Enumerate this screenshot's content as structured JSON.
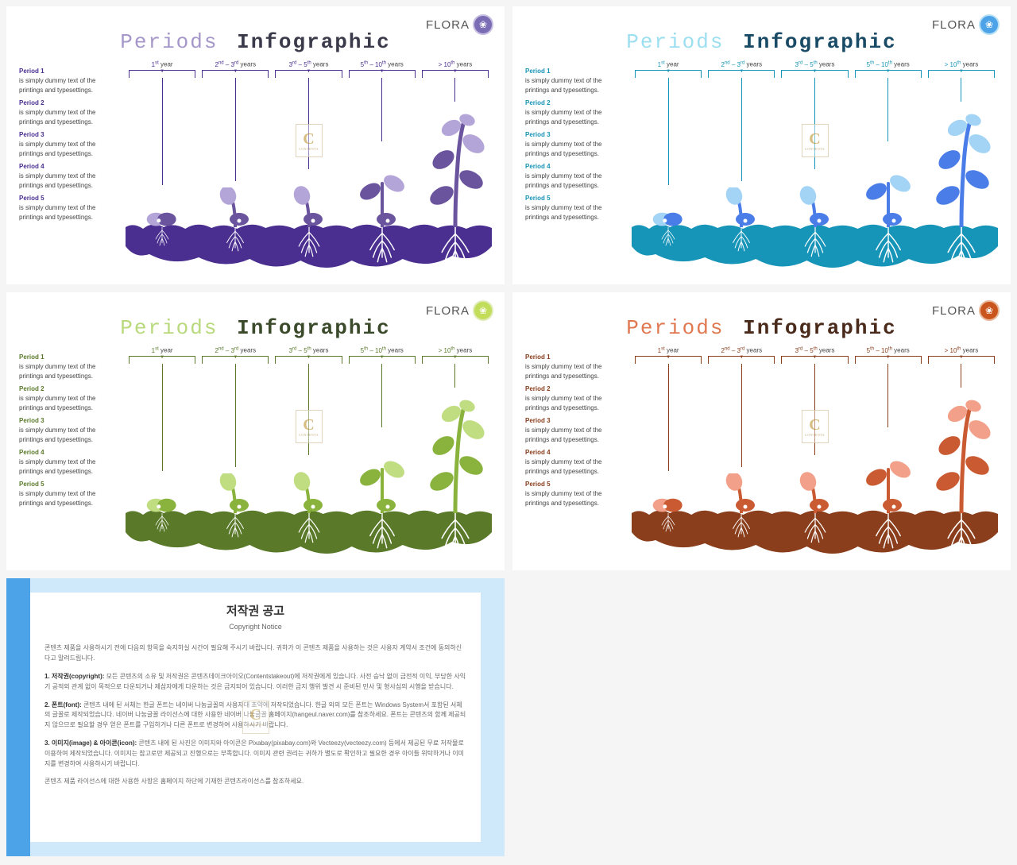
{
  "title_word1": "Periods",
  "title_word2": "Infographic",
  "logo_text": "FLORA",
  "stage_unit": "year",
  "stage_unit_plural": "years",
  "stages": [
    {
      "label_html": "1<sup>st</sup> year"
    },
    {
      "label_html": "2<sup>nd</sup> – 3<sup>rd</sup> years"
    },
    {
      "label_html": "3<sup>rd</sup> – 5<sup>th</sup> years"
    },
    {
      "label_html": "5<sup>th</sup> – 10<sup>th</sup> years"
    },
    {
      "label_html": "> 10<sup>th</sup> years"
    }
  ],
  "side_periods": [
    {
      "h": "Period 1",
      "t": "is simply dummy text of the printings and typesettings."
    },
    {
      "h": "Period 2",
      "t": "is simply dummy text of the printings and typesettings."
    },
    {
      "h": "Period 3",
      "t": "is simply dummy text of the printings and typesettings."
    },
    {
      "h": "Period 4",
      "t": "is simply dummy text of the printings and typesettings."
    },
    {
      "h": "Period 5",
      "t": "is simply dummy text of the printings and typesettings."
    }
  ],
  "variants": [
    {
      "name": "purple",
      "title1_color": "#a597c9",
      "title2_color": "#3a3a4a",
      "accent": "#4a2f91",
      "plant_light": "#b3a5d8",
      "plant_dark": "#6b549e",
      "ground": "#4a2f91",
      "logo_circle_bg": "#7a6cb5",
      "logo_circle_border": "#c7bfe2"
    },
    {
      "name": "blue",
      "title1_color": "#9bdff0",
      "title2_color": "#1a4b66",
      "accent": "#1795b8",
      "plant_light": "#a3d4f5",
      "plant_dark": "#4a7de8",
      "ground": "#1795b8",
      "logo_circle_bg": "#4da3e8",
      "logo_circle_border": "#b8e0f5"
    },
    {
      "name": "green",
      "title1_color": "#b8d97c",
      "title2_color": "#3a4a2a",
      "accent": "#5a7a2a",
      "plant_light": "#c1dd82",
      "plant_dark": "#8ab33e",
      "ground": "#5a7a2a",
      "logo_circle_bg": "#c1dd5a",
      "logo_circle_border": "#e0ecb8"
    },
    {
      "name": "orange",
      "title1_color": "#e07850",
      "title2_color": "#4a2a1a",
      "accent": "#8a3e1c",
      "plant_light": "#f2a089",
      "plant_dark": "#c95a32",
      "ground": "#8a3e1c",
      "logo_circle_bg": "#c9551c",
      "logo_circle_border": "#e8b89a"
    }
  ],
  "watermark_letter": "C",
  "watermark_small": "CONTENTS",
  "copyright": {
    "title": "저작권 공고",
    "subtitle": "Copyright Notice",
    "intro": "콘텐츠 제품을 사용하시기 전에 다음의 항목을 숙지하실 시간이 필요해 주시기 바랍니다. 귀하가 이 콘텐츠 제품을 사용하는 것은 사용자 계약서 조건에 동의하신다고 말려드립니다.",
    "item1_h": "1. 저작권(copyright):",
    "item1_t": "모든 콘텐츠의 소유 및 저작권은 콘텐츠데이크아이오(Contentstakeout)에 저작권에게 있습니다. 사전 승낙 없이 금전적 이익, 부당한 사익기 공적외 관계 없이 목적으로 다운되거나 제삼자에게 다운하는 것은 금지되어 있습니다. 이러한 금지 행위 발견 시 준비된 민사 및 형사심의 시행을 받습니다.",
    "item2_h": "2. 폰트(font):",
    "item2_t": "콘텐츠 내에 된 서체는 한글 폰트는 네이버 나눔글꼴의 사용자대 초약에 저작되었습니다. 한글 외의 모든 폰트는 Windows System서 포함된 서체의 글꼴로 제작되었습니다. 네이버 나눔글꼴 라이선스에 대한 사용한 네이버 나눔글꼴 홈페이지(hangeul.naver.com)를 참조하세요. 폰트는 콘텐츠의 함께 제공되지 않으므로 필요할 경우 얻은 폰트를 구입하거나 다른 폰트로 변경하여 사용하시기 바랍니다.",
    "item3_h": "3. 이미지(image) & 아이콘(icon):",
    "item3_t": "콘텐츠 내에 된 사진은 이미지와 아이콘은 Pixabay(pixabay.com)와 Vecteezy(vecteezy.com) 등에서 제공된 무료 저작물로 이용하여 제작되었습니다. 이미지는 참고로만 제공되고 진행으로는 부족합니다. 이미지 관련 권리는 귀하가 별도로 확인하고 필요한 경우 아이들 위탁하거나 이미지를 변경하여 사용하시기 바랍니다.",
    "footer": "콘텐츠 제품 라이선스에 대한 사용한 사항은 홈페이지 하단에 기재한 콘텐츠라이선스를 참조하세요."
  }
}
